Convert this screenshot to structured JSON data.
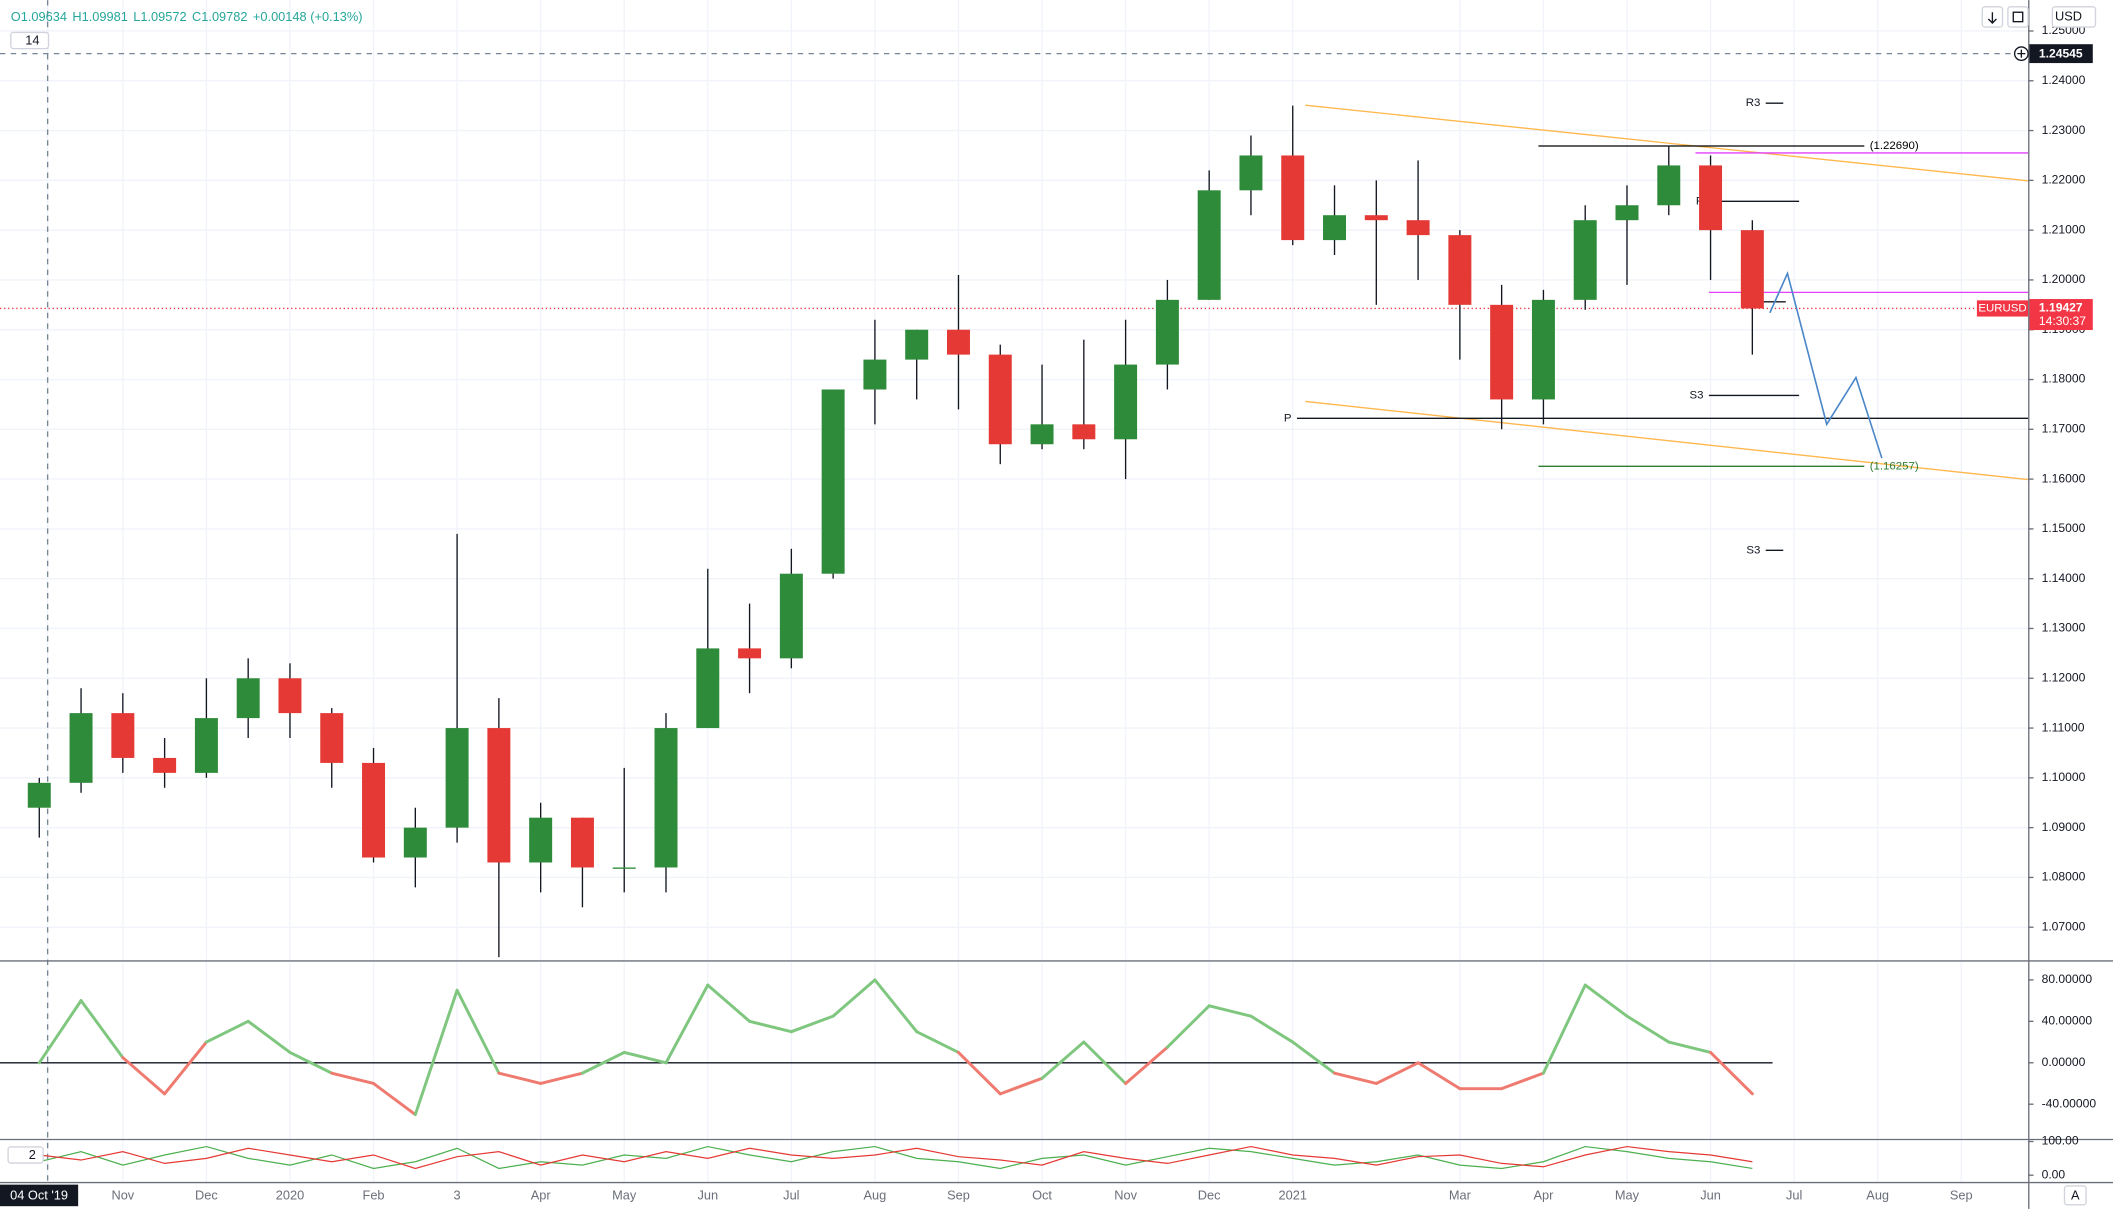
{
  "ui": {
    "interval": "14",
    "currency": "USD",
    "panel_badge": "2",
    "auto": "A"
  },
  "chart_data": [
    {
      "type": "candlestick",
      "symbol": "EURUSD",
      "header": [
        "O1.09634",
        "H1.09981",
        "L1.09572",
        "C1.09782",
        "+0.00148 (+0.13%)"
      ],
      "up_color": "#2e8b3a",
      "down_color": "#e53935",
      "grid": true,
      "x": [
        0,
        0.5,
        1,
        1.5,
        2,
        2.5,
        3,
        3.5,
        4,
        4.5,
        5,
        5.5,
        6,
        6.5,
        7,
        7.5,
        8,
        8.5,
        9,
        9.5,
        10,
        10.5,
        11,
        11.5,
        12,
        12.5,
        13,
        13.5,
        14,
        14.5,
        15,
        15.5,
        16,
        16.5,
        17,
        17.5,
        18,
        18.5,
        19,
        19.5,
        20,
        20.5
      ],
      "open": [
        1.094,
        1.099,
        1.113,
        1.104,
        1.101,
        1.112,
        1.12,
        1.113,
        1.103,
        1.084,
        1.09,
        1.11,
        1.083,
        1.092,
        1.082,
        1.082,
        1.11,
        1.126,
        1.124,
        1.141,
        1.178,
        1.184,
        1.19,
        1.185,
        1.167,
        1.171,
        1.168,
        1.183,
        1.196,
        1.218,
        1.225,
        1.208,
        1.213,
        1.212,
        1.209,
        1.195,
        1.176,
        1.196,
        1.212,
        1.215,
        1.223,
        1.21
      ],
      "high": [
        1.1,
        1.118,
        1.117,
        1.108,
        1.12,
        1.124,
        1.123,
        1.114,
        1.106,
        1.094,
        1.149,
        1.116,
        1.095,
        1.092,
        1.102,
        1.113,
        1.142,
        1.135,
        1.146,
        1.178,
        1.192,
        1.19,
        1.201,
        1.187,
        1.183,
        1.188,
        1.192,
        1.2,
        1.222,
        1.229,
        1.235,
        1.219,
        1.22,
        1.224,
        1.21,
        1.199,
        1.198,
        1.215,
        1.219,
        1.227,
        1.225,
        1.212
      ],
      "low": [
        1.088,
        1.097,
        1.101,
        1.098,
        1.1,
        1.108,
        1.108,
        1.098,
        1.083,
        1.078,
        1.087,
        1.064,
        1.077,
        1.074,
        1.077,
        1.077,
        1.11,
        1.117,
        1.122,
        1.14,
        1.171,
        1.176,
        1.174,
        1.163,
        1.166,
        1.166,
        1.16,
        1.178,
        1.196,
        1.213,
        1.207,
        1.205,
        1.195,
        1.2,
        1.184,
        1.17,
        1.171,
        1.194,
        1.199,
        1.213,
        1.2,
        1.185
      ],
      "close": [
        1.099,
        1.113,
        1.104,
        1.101,
        1.112,
        1.12,
        1.113,
        1.103,
        1.084,
        1.09,
        1.11,
        1.083,
        1.092,
        1.082,
        1.082,
        1.11,
        1.126,
        1.124,
        1.141,
        1.178,
        1.184,
        1.19,
        1.185,
        1.167,
        1.171,
        1.168,
        1.183,
        1.196,
        1.218,
        1.225,
        1.208,
        1.213,
        1.212,
        1.209,
        1.195,
        1.176,
        1.196,
        1.212,
        1.215,
        1.223,
        1.21,
        1.19427
      ],
      "xlim": [
        -0.47,
        23.8
      ],
      "xticks": [
        {
          "value": 0.1,
          "label": "04 Oct '19"
        },
        {
          "value": 1,
          "label": "Nov"
        },
        {
          "value": 2,
          "label": "Dec"
        },
        {
          "value": 3,
          "label": "2020"
        },
        {
          "value": 4,
          "label": "Feb"
        },
        {
          "value": 5,
          "label": "3"
        },
        {
          "value": 6,
          "label": "Apr"
        },
        {
          "value": 7,
          "label": "May"
        },
        {
          "value": 8,
          "label": "Jun"
        },
        {
          "value": 9,
          "label": "Jul"
        },
        {
          "value": 10,
          "label": "Aug"
        },
        {
          "value": 11,
          "label": "Sep"
        },
        {
          "value": 12,
          "label": "Oct"
        },
        {
          "value": 13,
          "label": "Nov"
        },
        {
          "value": 14,
          "label": "Dec"
        },
        {
          "value": 15,
          "label": "2021"
        },
        {
          "value": 17,
          "label": "Mar"
        },
        {
          "value": 18,
          "label": "Apr"
        },
        {
          "value": 19,
          "label": "May"
        },
        {
          "value": 20,
          "label": "Jun"
        },
        {
          "value": 21,
          "label": "Jul"
        },
        {
          "value": 22,
          "label": "Aug"
        },
        {
          "value": 23,
          "label": "Sep"
        }
      ],
      "ylim": [
        1.0635,
        1.2562
      ],
      "yticks": [
        {
          "value": 1.25,
          "label": "1.25000"
        },
        {
          "value": 1.24,
          "label": "1.24000"
        },
        {
          "value": 1.23,
          "label": "1.23000"
        },
        {
          "value": 1.22,
          "label": "1.22000"
        },
        {
          "value": 1.21,
          "label": "1.21000"
        },
        {
          "value": 1.2,
          "label": "1.20000"
        },
        {
          "value": 1.19,
          "label": "1.19000"
        },
        {
          "value": 1.18,
          "label": "1.18000"
        },
        {
          "value": 1.17,
          "label": "1.17000"
        },
        {
          "value": 1.16,
          "label": "1.16000"
        },
        {
          "value": 1.15,
          "label": "1.15000"
        },
        {
          "value": 1.14,
          "label": "1.14000"
        },
        {
          "value": 1.13,
          "label": "1.13000"
        },
        {
          "value": 1.12,
          "label": "1.12000"
        },
        {
          "value": 1.11,
          "label": "1.11000"
        },
        {
          "value": 1.1,
          "label": "1.10000"
        },
        {
          "value": 1.09,
          "label": "1.09000"
        },
        {
          "value": 1.08,
          "label": "1.08000"
        },
        {
          "value": 1.07,
          "label": "1.07000"
        }
      ],
      "last": {
        "value": 1.19427,
        "time": "14:30:37",
        "color": "#f23645"
      },
      "crosshair": {
        "value": 1.24545
      },
      "pivots": [
        {
          "label": "R3",
          "value": 1.2355,
          "x": [
            20.66,
            20.87
          ]
        },
        {
          "label": "P",
          "value": 1.2158,
          "x": [
            19.98,
            21.06
          ]
        },
        {
          "label": "P",
          "value": 1.1956,
          "x": [
            20.58,
            20.9
          ]
        },
        {
          "label": "S3",
          "value": 1.1768,
          "x": [
            19.98,
            21.06
          ]
        },
        {
          "label": "S3",
          "value": 1.1457,
          "x": [
            20.66,
            20.87
          ]
        },
        {
          "label": "P",
          "value": 1.1722,
          "x": [
            15.05,
            23.8
          ]
        }
      ],
      "levels": [
        {
          "label": "(1.22690)",
          "value": 1.2269,
          "x": [
            17.94,
            21.84
          ],
          "color": "#000000"
        },
        {
          "label": "(1.16257)",
          "value": 1.16257,
          "x": [
            17.94,
            21.84
          ],
          "color": "#2e7d32"
        },
        {
          "value": 1.2255,
          "x": [
            19.82,
            23.8
          ],
          "color": "#e040fb"
        },
        {
          "value": 1.1975,
          "x": [
            19.98,
            23.8
          ],
          "color": "#e040fb"
        }
      ],
      "trendlines": [
        {
          "x": [
            15.15,
            23.8
          ],
          "y": [
            1.2351,
            1.2199
          ],
          "color": "#ffb74d"
        },
        {
          "x": [
            15.15,
            23.8
          ],
          "y": [
            1.1756,
            1.1599
          ],
          "color": "#ffb74d"
        }
      ],
      "projection": {
        "x": [
          20.71,
          20.92,
          21.39,
          21.74,
          22.05
        ],
        "y": [
          1.1934,
          1.2013,
          1.171,
          1.1804,
          1.1642
        ],
        "color": "#4a86c8"
      }
    },
    {
      "type": "oscillator",
      "up_color": "#7fc77f",
      "down_color": "#ef7a6f",
      "values": [
        0,
        60,
        5,
        -30,
        20,
        40,
        10,
        -10,
        -20,
        -50,
        70,
        -10,
        -20,
        -10,
        10,
        0,
        75,
        40,
        30,
        45,
        80,
        30,
        10,
        -30,
        -15,
        20,
        -20,
        15,
        55,
        45,
        20,
        -10,
        -20,
        0,
        -25,
        -25,
        -10,
        75,
        45,
        20,
        10,
        -30
      ],
      "ylim": [
        -73.4,
        97
      ],
      "yticks": [
        {
          "value": 80,
          "label": "80.00000"
        },
        {
          "value": 40,
          "label": "40.00000"
        },
        {
          "value": 0,
          "label": "0.00000"
        },
        {
          "value": -40,
          "label": "-40.00000"
        }
      ]
    },
    {
      "type": "line",
      "series": [
        {
          "color": "#4caf50",
          "values": [
            40,
            70,
            30,
            60,
            85,
            50,
            30,
            60,
            20,
            40,
            80,
            20,
            40,
            30,
            60,
            50,
            85,
            60,
            40,
            70,
            85,
            50,
            40,
            20,
            50,
            60,
            30,
            55,
            80,
            70,
            50,
            30,
            40,
            60,
            30,
            20,
            40,
            85,
            70,
            50,
            40,
            20
          ]
        },
        {
          "color": "#e53935",
          "values": [
            60,
            45,
            70,
            35,
            50,
            80,
            60,
            40,
            60,
            20,
            55,
            70,
            30,
            60,
            40,
            70,
            50,
            80,
            60,
            50,
            60,
            80,
            55,
            45,
            30,
            70,
            50,
            35,
            60,
            85,
            60,
            50,
            30,
            55,
            60,
            35,
            25,
            60,
            85,
            70,
            60,
            40
          ]
        }
      ],
      "ylim": [
        -20,
        104
      ],
      "yticks": [
        {
          "value": 100,
          "label": "100.00"
        },
        {
          "value": 0,
          "label": "0.00"
        }
      ]
    }
  ]
}
